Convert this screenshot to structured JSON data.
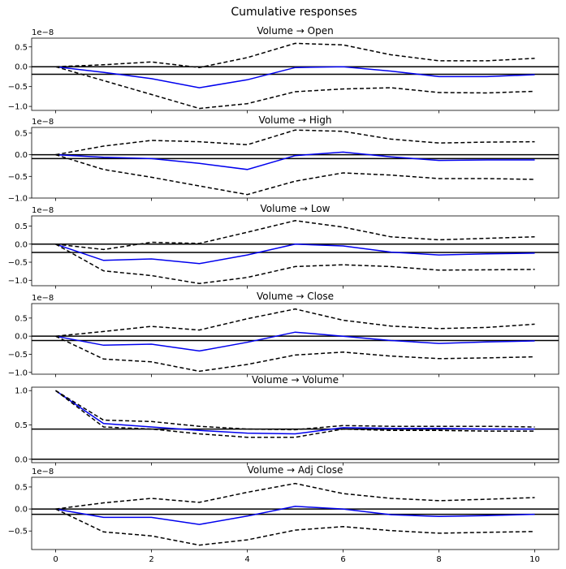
{
  "figure_title": "Cumulative responses",
  "colors": {
    "irf": "#0000ee",
    "band": "#000000",
    "axis": "#000000"
  },
  "chart_data": [
    {
      "type": "line",
      "title": "Volume → Open",
      "offset_text": "1e−8",
      "x": [
        0,
        1,
        2,
        3,
        4,
        5,
        6,
        7,
        8,
        9,
        10
      ],
      "xlim": [
        -0.5,
        10.5
      ],
      "ylim": [
        -1.1,
        0.72
      ],
      "yticks": [
        0.5,
        0.0,
        -0.5,
        -1.0
      ],
      "ytick_labels": [
        "0.5",
        "0.0",
        "−0.5",
        "−1.0"
      ],
      "hlines": [
        0.0,
        -0.19
      ],
      "series": [
        {
          "role": "irf",
          "values": [
            0,
            -0.14,
            -0.3,
            -0.53,
            -0.33,
            -0.02,
            0.0,
            -0.11,
            -0.25,
            -0.25,
            -0.2
          ]
        },
        {
          "role": "upper",
          "values": [
            0,
            0.05,
            0.12,
            -0.02,
            0.23,
            0.59,
            0.55,
            0.3,
            0.15,
            0.15,
            0.21
          ]
        },
        {
          "role": "lower",
          "values": [
            0,
            -0.35,
            -0.7,
            -1.05,
            -0.93,
            -0.63,
            -0.56,
            -0.53,
            -0.65,
            -0.66,
            -0.62
          ]
        }
      ]
    },
    {
      "type": "line",
      "title": "Volume → High",
      "offset_text": "1e−8",
      "x": [
        0,
        1,
        2,
        3,
        4,
        5,
        6,
        7,
        8,
        9,
        10
      ],
      "xlim": [
        -0.5,
        10.5
      ],
      "ylim": [
        -1.0,
        0.63
      ],
      "yticks": [
        0.5,
        0.0,
        -0.5,
        -1.0
      ],
      "ytick_labels": [
        "0.5",
        "0.0",
        "−0.5",
        "−1.0"
      ],
      "hlines": [
        0.0,
        -0.09
      ],
      "series": [
        {
          "role": "irf",
          "values": [
            0,
            -0.06,
            -0.09,
            -0.2,
            -0.34,
            -0.02,
            0.06,
            -0.05,
            -0.13,
            -0.12,
            -0.12
          ]
        },
        {
          "role": "upper",
          "values": [
            0,
            0.2,
            0.33,
            0.3,
            0.23,
            0.57,
            0.54,
            0.36,
            0.27,
            0.29,
            0.3
          ]
        },
        {
          "role": "lower",
          "values": [
            0,
            -0.34,
            -0.52,
            -0.72,
            -0.92,
            -0.61,
            -0.42,
            -0.47,
            -0.55,
            -0.55,
            -0.57
          ]
        }
      ]
    },
    {
      "type": "line",
      "title": "Volume → Low",
      "offset_text": "1e−8",
      "x": [
        0,
        1,
        2,
        3,
        4,
        5,
        6,
        7,
        8,
        9,
        10
      ],
      "xlim": [
        -0.5,
        10.5
      ],
      "ylim": [
        -1.15,
        0.78
      ],
      "yticks": [
        0.5,
        0.0,
        -0.5,
        -1.0
      ],
      "ytick_labels": [
        "0.5",
        "0.0",
        "−0.5",
        "−1.0"
      ],
      "hlines": [
        0.0,
        -0.23
      ],
      "series": [
        {
          "role": "irf",
          "values": [
            0,
            -0.45,
            -0.41,
            -0.54,
            -0.3,
            0.0,
            -0.05,
            -0.22,
            -0.3,
            -0.27,
            -0.25
          ]
        },
        {
          "role": "upper",
          "values": [
            0,
            -0.15,
            0.05,
            0.02,
            0.33,
            0.65,
            0.47,
            0.2,
            0.12,
            0.16,
            0.2
          ]
        },
        {
          "role": "lower",
          "values": [
            0,
            -0.74,
            -0.87,
            -1.09,
            -0.92,
            -0.62,
            -0.57,
            -0.62,
            -0.72,
            -0.71,
            -0.7
          ]
        }
      ]
    },
    {
      "type": "line",
      "title": "Volume → Close",
      "offset_text": "1e−8",
      "x": [
        0,
        1,
        2,
        3,
        4,
        5,
        6,
        7,
        8,
        9,
        10
      ],
      "xlim": [
        -0.5,
        10.5
      ],
      "ylim": [
        -1.05,
        0.9
      ],
      "yticks": [
        0.5,
        0.0,
        -0.5,
        -1.0
      ],
      "ytick_labels": [
        "0.5",
        "0.0",
        "−0.5",
        "−1.0"
      ],
      "hlines": [
        0.0,
        -0.12
      ],
      "series": [
        {
          "role": "irf",
          "values": [
            0,
            -0.25,
            -0.22,
            -0.41,
            -0.17,
            0.11,
            0.0,
            -0.12,
            -0.2,
            -0.16,
            -0.13
          ]
        },
        {
          "role": "upper",
          "values": [
            0,
            0.13,
            0.27,
            0.17,
            0.48,
            0.75,
            0.44,
            0.28,
            0.21,
            0.24,
            0.33
          ]
        },
        {
          "role": "lower",
          "values": [
            0,
            -0.63,
            -0.71,
            -0.97,
            -0.78,
            -0.52,
            -0.44,
            -0.55,
            -0.62,
            -0.6,
            -0.57
          ]
        }
      ]
    },
    {
      "type": "line",
      "title": "Volume → Volume",
      "offset_text": "",
      "x": [
        0,
        1,
        2,
        3,
        4,
        5,
        6,
        7,
        8,
        9,
        10
      ],
      "xlim": [
        -0.5,
        10.5
      ],
      "ylim": [
        -0.05,
        1.05
      ],
      "yticks": [
        1.0,
        0.5,
        0.0
      ],
      "ytick_labels": [
        "1.0",
        "0.5",
        "0.0"
      ],
      "hlines": [
        0.0,
        0.44
      ],
      "series": [
        {
          "role": "irf",
          "values": [
            1.0,
            0.52,
            0.47,
            0.42,
            0.38,
            0.37,
            0.46,
            0.45,
            0.45,
            0.44,
            0.44
          ]
        },
        {
          "role": "upper",
          "values": [
            1.0,
            0.57,
            0.55,
            0.48,
            0.44,
            0.43,
            0.49,
            0.48,
            0.48,
            0.48,
            0.47
          ]
        },
        {
          "role": "lower",
          "values": [
            1.0,
            0.47,
            0.44,
            0.37,
            0.32,
            0.32,
            0.44,
            0.42,
            0.42,
            0.41,
            0.41
          ]
        }
      ]
    },
    {
      "type": "line",
      "title": "Volume → Adj Close",
      "offset_text": "1e−8",
      "x": [
        0,
        1,
        2,
        3,
        4,
        5,
        6,
        7,
        8,
        9,
        10
      ],
      "xlim": [
        -0.5,
        10.5
      ],
      "ylim": [
        -0.92,
        0.72
      ],
      "yticks": [
        0.5,
        0.0,
        -0.5
      ],
      "ytick_labels": [
        "0.5",
        "0.0",
        "−0.5"
      ],
      "hlines": [
        0.0,
        -0.12
      ],
      "series": [
        {
          "role": "irf",
          "values": [
            0,
            -0.19,
            -0.19,
            -0.35,
            -0.16,
            0.06,
            0.0,
            -0.13,
            -0.17,
            -0.15,
            -0.12
          ]
        },
        {
          "role": "upper",
          "values": [
            0,
            0.14,
            0.24,
            0.15,
            0.38,
            0.58,
            0.35,
            0.24,
            0.19,
            0.22,
            0.26
          ]
        },
        {
          "role": "lower",
          "values": [
            0,
            -0.52,
            -0.61,
            -0.82,
            -0.7,
            -0.48,
            -0.4,
            -0.49,
            -0.55,
            -0.53,
            -0.51
          ]
        }
      ]
    }
  ],
  "shared_x_ticks": [
    0,
    2,
    4,
    6,
    8,
    10
  ],
  "shared_x_tick_labels": [
    "0",
    "2",
    "4",
    "6",
    "8",
    "10"
  ]
}
